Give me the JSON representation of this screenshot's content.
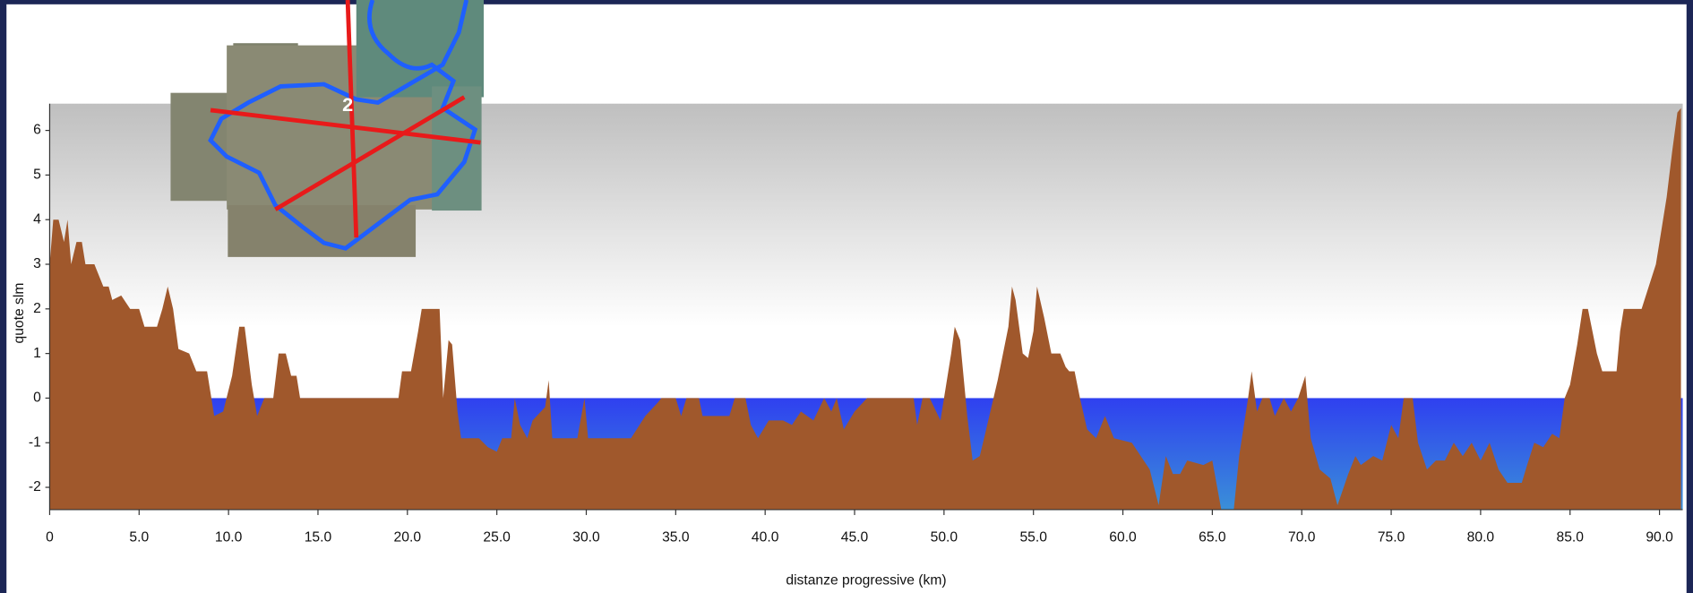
{
  "chart_data": {
    "type": "area",
    "x_label": "distanze progressive (km)",
    "y_label": "quote slm",
    "water_color": "#2f40f0",
    "terrain_color": "#a0582c",
    "xlim": [
      0,
      91.3
    ],
    "ylim": [
      -2.5,
      6.6
    ],
    "yticks": [
      -2,
      -1,
      0,
      1,
      2,
      3,
      4,
      5,
      6
    ],
    "xticks": [
      0,
      {
        "value": 5,
        "label": "5.0"
      },
      {
        "value": 10,
        "label": "10.0"
      },
      {
        "value": 15,
        "label": "15.0"
      },
      {
        "value": 20,
        "label": "20.0"
      },
      {
        "value": 25,
        "label": "25.0"
      },
      {
        "value": 30,
        "label": "30.0"
      },
      {
        "value": 35,
        "label": "35.0"
      },
      {
        "value": 40,
        "label": "40.0"
      },
      {
        "value": 45,
        "label": "45.0"
      },
      {
        "value": 50,
        "label": "50.0"
      },
      {
        "value": 55,
        "label": "55.0"
      },
      {
        "value": 60,
        "label": "60.0"
      },
      {
        "value": 65,
        "label": "65.0"
      },
      {
        "value": 70,
        "label": "70.0"
      },
      {
        "value": 75,
        "label": "75.0"
      },
      {
        "value": 80,
        "label": "80.0"
      },
      {
        "value": 85,
        "label": "85.0"
      },
      {
        "value": 90,
        "label": "90.0"
      }
    ],
    "x": [
      0,
      0.2,
      0.5,
      0.8,
      1,
      1.2,
      1.5,
      1.8,
      2,
      2.5,
      3,
      3.3,
      3.5,
      4,
      4.5,
      5,
      5.3,
      6,
      6.3,
      6.6,
      6.9,
      7.2,
      7.8,
      8.2,
      8.8,
      9.2,
      9.7,
      10.2,
      10.6,
      10.9,
      11.3,
      11.6,
      12,
      12.5,
      12.8,
      13.2,
      13.5,
      13.8,
      14,
      16,
      18,
      19.5,
      19.7,
      20.2,
      20.6,
      20.8,
      21.8,
      22,
      22.3,
      22.5,
      22.8,
      23,
      24,
      24.5,
      25,
      25.3,
      25.8,
      26,
      26.3,
      26.7,
      27,
      27.7,
      27.9,
      28.1,
      29.5,
      29.9,
      30.1,
      32.5,
      33.3,
      34,
      34.2,
      35,
      35.3,
      35.6,
      36.3,
      36.5,
      38,
      38.3,
      38.9,
      39.2,
      39.6,
      40.2,
      41,
      41.5,
      42,
      42.7,
      43.3,
      43.7,
      44,
      44.4,
      45,
      45.7,
      46.2,
      47,
      48.3,
      48.5,
      48.8,
      49.2,
      49.8,
      50.4,
      50.6,
      50.9,
      51.3,
      51.6,
      52,
      52.3,
      53,
      53.6,
      53.8,
      54,
      54.4,
      54.7,
      55,
      55.2,
      55.6,
      56,
      56.5,
      56.8,
      57,
      57.3,
      57.6,
      58,
      58.5,
      59,
      59.5,
      60.5,
      61.5,
      62,
      62.4,
      62.8,
      63.2,
      63.6,
      64.5,
      65,
      65.5,
      66.2,
      66.5,
      67,
      67.2,
      67.5,
      67.8,
      68.2,
      68.5,
      69,
      69.4,
      69.8,
      70.2,
      70.5,
      71,
      71.6,
      72,
      72.6,
      73,
      73.3,
      74,
      74.5,
      75,
      75.4,
      75.7,
      76.2,
      76.5,
      77,
      77.5,
      78,
      78.5,
      79,
      79.5,
      80,
      80.5,
      81,
      81.5,
      82.3,
      82.6,
      83,
      83.5,
      84,
      84.4,
      84.7,
      85,
      85.4,
      85.7,
      86,
      86.5,
      86.8,
      87.6,
      87.8,
      88,
      89,
      89.4,
      89.8,
      90,
      90.4,
      90.7,
      91,
      91.2
    ],
    "values": [
      3,
      4,
      4,
      3.5,
      4,
      3,
      3.5,
      3.5,
      3,
      3,
      2.5,
      2.5,
      2.2,
      2.3,
      2,
      2,
      1.6,
      1.6,
      2,
      2.5,
      2,
      1.1,
      1,
      0.6,
      0.6,
      -0.4,
      -0.3,
      0.5,
      1.6,
      1.6,
      0.3,
      -0.4,
      0,
      0,
      1,
      1,
      0.5,
      0.5,
      0,
      0,
      0,
      0,
      0.6,
      0.6,
      1.5,
      2,
      2,
      0,
      1.3,
      1.2,
      -0.3,
      -0.9,
      -0.9,
      -1.1,
      -1.2,
      -0.9,
      -0.9,
      0,
      -0.6,
      -0.9,
      -0.5,
      -0.2,
      0.4,
      -0.9,
      -0.9,
      0,
      -0.9,
      -0.9,
      -0.4,
      -0.1,
      0,
      0,
      -0.4,
      0,
      0,
      -0.4,
      -0.4,
      0,
      0,
      -0.6,
      -0.9,
      -0.5,
      -0.5,
      -0.6,
      -0.3,
      -0.5,
      0,
      -0.3,
      0,
      -0.7,
      -0.3,
      0,
      0,
      0,
      0,
      -0.6,
      0,
      0,
      -0.5,
      1,
      1.6,
      1.3,
      -0.4,
      -1.4,
      -1.3,
      -0.8,
      0.4,
      1.6,
      2.5,
      2.2,
      1,
      0.9,
      1.5,
      2.5,
      1.8,
      1,
      1,
      0.7,
      0.6,
      0.6,
      0,
      -0.7,
      -0.9,
      -0.4,
      -0.9,
      -1,
      -1.6,
      -2.4,
      -1.3,
      -1.7,
      -1.7,
      -1.4,
      -1.5,
      -1.4,
      -2.5,
      -2.5,
      -1.3,
      0,
      0.6,
      -0.3,
      0,
      0,
      -0.4,
      0,
      -0.3,
      0,
      0.5,
      -0.9,
      -1.6,
      -1.8,
      -2.4,
      -1.7,
      -1.3,
      -1.5,
      -1.3,
      -1.4,
      -0.6,
      -0.9,
      0,
      0,
      -1,
      -1.6,
      -1.4,
      -1.4,
      -1,
      -1.3,
      -1,
      -1.4,
      -1,
      -1.6,
      -1.9,
      -1.9,
      -1.5,
      -1,
      -1.1,
      -0.8,
      -0.9,
      0,
      0.3,
      1.2,
      2,
      2,
      1,
      0.6,
      0.6,
      1.5,
      2,
      2,
      2.5,
      3,
      3.5,
      4.5,
      5.5,
      6.4,
      6.5
    ]
  },
  "inset": {
    "label": "2"
  }
}
